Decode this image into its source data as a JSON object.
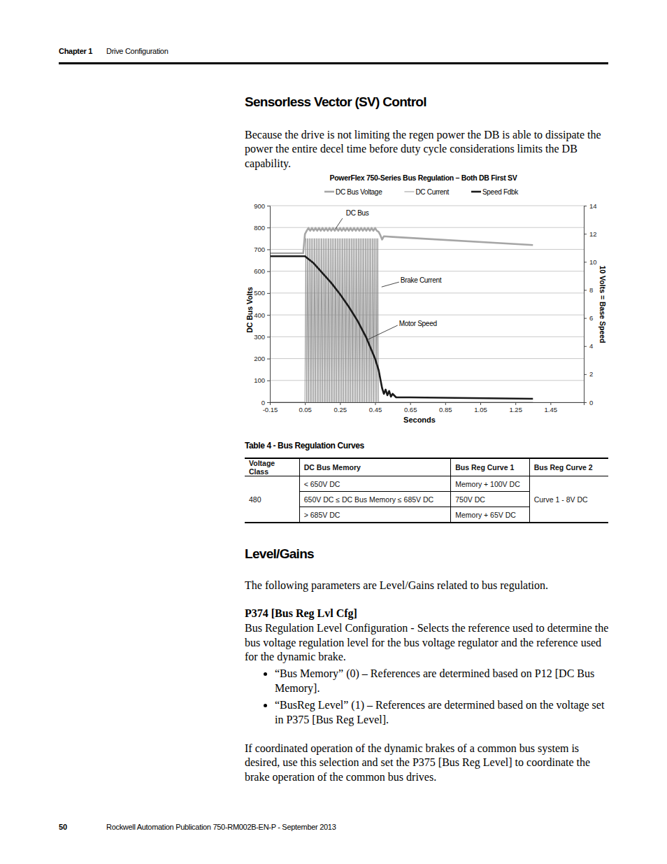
{
  "header": {
    "chapter": "Chapter 1",
    "section": "Drive Configuration"
  },
  "heading_1": "Sensorless Vector (SV) Control",
  "paragraph_1": "Because the drive is not limiting the regen power the DB is able to dissipate the power the entire decel time before duty cycle considerations limits the DB capability.",
  "chart_data": {
    "type": "line",
    "title": "PowerFlex 750-Series Bus Regulation – Both DB First SV",
    "x_label": "Seconds",
    "y_label": "DC Bus Volts",
    "y2_label": "10 Volts = Base Speed",
    "xlim": [
      -0.15,
      1.64
    ],
    "xticks": [
      -0.15,
      0.05,
      0.25,
      0.45,
      0.65,
      0.85,
      1.05,
      1.25,
      1.45
    ],
    "ylim": [
      0,
      900
    ],
    "yticks": [
      0,
      100,
      200,
      300,
      400,
      500,
      600,
      700,
      800,
      900
    ],
    "y2lim": [
      0,
      14
    ],
    "y2ticks": [
      0,
      2,
      4,
      6,
      8,
      10,
      12,
      14
    ],
    "grid": "y",
    "legend": "top",
    "series": [
      {
        "name": "DC Bus Voltage",
        "color": "#a6a6a6",
        "line_style": "heavy",
        "x": [
          -0.15,
          0.04,
          0.05,
          0.06,
          0.07,
          0.08,
          0.09,
          0.1,
          0.11,
          0.12,
          0.13,
          0.14,
          0.15,
          0.16,
          0.17,
          0.18,
          0.19,
          0.2,
          0.21,
          0.22,
          0.23,
          0.24,
          0.25,
          0.26,
          0.27,
          0.28,
          0.29,
          0.3,
          0.31,
          0.32,
          0.33,
          0.34,
          0.35,
          0.36,
          0.37,
          0.38,
          0.39,
          0.4,
          0.41,
          0.42,
          0.43,
          0.44,
          0.45,
          0.46,
          0.47,
          0.48,
          0.49,
          0.5,
          0.55,
          1.35
        ],
        "values": [
          682,
          682,
          770,
          785,
          798,
          785,
          798,
          785,
          798,
          785,
          798,
          785,
          798,
          785,
          798,
          785,
          798,
          785,
          798,
          785,
          798,
          785,
          798,
          785,
          798,
          785,
          798,
          785,
          798,
          785,
          798,
          785,
          798,
          785,
          798,
          785,
          798,
          785,
          798,
          785,
          798,
          785,
          798,
          785,
          780,
          765,
          745,
          760,
          757,
          720
        ]
      },
      {
        "name": "DC Current",
        "color": "#8c8c8c",
        "line_style": "thin",
        "x": [
          -0.15,
          0.05,
          0.055,
          0.06,
          0.065,
          0.07,
          0.075,
          0.08,
          0.085,
          0.09,
          0.095,
          0.1,
          0.105,
          0.11,
          0.115,
          0.12,
          0.125,
          0.13,
          0.135,
          0.14,
          0.145,
          0.15,
          0.155,
          0.16,
          0.165,
          0.17,
          0.175,
          0.18,
          0.185,
          0.19,
          0.195,
          0.2,
          0.205,
          0.21,
          0.215,
          0.22,
          0.225,
          0.23,
          0.235,
          0.24,
          0.245,
          0.25,
          0.255,
          0.26,
          0.265,
          0.27,
          0.275,
          0.28,
          0.285,
          0.29,
          0.295,
          0.3,
          0.305,
          0.31,
          0.315,
          0.32,
          0.325,
          0.33,
          0.335,
          0.34,
          0.345,
          0.35,
          0.355,
          0.36,
          0.365,
          0.37,
          0.375,
          0.38,
          0.385,
          0.39,
          0.395,
          0.4,
          0.405,
          0.41,
          0.415,
          0.42,
          0.425,
          0.43,
          0.435,
          0.44,
          0.445,
          0.45,
          0.455,
          0.46,
          0.465,
          0.47,
          1.35
        ],
        "values": [
          0,
          0,
          750,
          0,
          750,
          0,
          750,
          0,
          750,
          0,
          750,
          0,
          750,
          0,
          750,
          0,
          750,
          0,
          750,
          0,
          750,
          0,
          750,
          0,
          750,
          0,
          750,
          0,
          750,
          0,
          750,
          0,
          750,
          0,
          750,
          0,
          750,
          0,
          750,
          0,
          750,
          0,
          750,
          0,
          750,
          0,
          750,
          0,
          750,
          0,
          750,
          0,
          750,
          0,
          750,
          0,
          750,
          0,
          750,
          0,
          750,
          0,
          750,
          0,
          750,
          0,
          750,
          0,
          750,
          0,
          750,
          0,
          750,
          0,
          750,
          0,
          750,
          0,
          750,
          0,
          750,
          0,
          750,
          0,
          750,
          0,
          0
        ]
      },
      {
        "name": "Speed Fdbk",
        "color": "#1a1a1a",
        "line_style": "heavy",
        "axis": "y2",
        "x": [
          -0.15,
          0.05,
          0.1,
          0.15,
          0.2,
          0.25,
          0.3,
          0.35,
          0.4,
          0.45,
          0.47,
          0.49,
          0.5,
          0.51,
          0.52,
          0.53,
          0.54,
          0.55,
          0.57,
          0.65,
          1.35
        ],
        "values": [
          10.4,
          10.4,
          9.9,
          9.2,
          8.5,
          7.7,
          6.8,
          5.8,
          4.6,
          3.1,
          2.3,
          1.0,
          0.6,
          0.9,
          0.5,
          0.8,
          0.4,
          0.6,
          0.35,
          0.35,
          0.25
        ]
      }
    ],
    "annotations": [
      {
        "text": "DC Bus",
        "x": 0.224,
        "y": 794
      },
      {
        "text": "Brake Current",
        "x": 0.487,
        "y": 528
      },
      {
        "text": "Motor Speed",
        "x": 0.403,
        "y": 285
      }
    ]
  },
  "table": {
    "caption": "Table 4 - Bus Regulation Curves",
    "columns": [
      "Voltage Class",
      "DC Bus Memory",
      "Bus Reg Curve 1",
      "Bus Reg Curve 2"
    ],
    "groups": [
      {
        "voltage_class": "480",
        "bus_reg_curve_2": "Curve 1 - 8V DC",
        "rows": [
          [
            "< 650V DC",
            "Memory + 100V DC"
          ],
          [
            "650V DC ≤ DC Bus Memory ≤ 685V DC",
            "750V DC"
          ],
          [
            "> 685V DC",
            "Memory + 65V DC"
          ]
        ]
      }
    ]
  },
  "heading_2": "Level/Gains",
  "paragraph_2": "The following parameters are Level/Gains related to bus regulation.",
  "parameter": {
    "title": "P374 [Bus Reg Lvl Cfg]",
    "description": "Bus Regulation Level Configuration - Selects the reference used to determine the bus voltage regulation level for the bus voltage regulator and the reference used for the dynamic brake.",
    "options": [
      "“Bus Memory” (0) – References are determined based on P12 [DC Bus Memory].",
      "“BusReg Level” (1) – References are determined based on the voltage set in P375 [Bus Reg Level]."
    ],
    "note": "If coordinated operation of the dynamic brakes of a common bus system is desired, use this selection and set the P375 [Bus Reg Level] to coordinate the brake operation of the common bus drives."
  },
  "footer": {
    "page": "50",
    "publication": "Rockwell Automation Publication 750-RM002B-EN-P - September 2013"
  }
}
